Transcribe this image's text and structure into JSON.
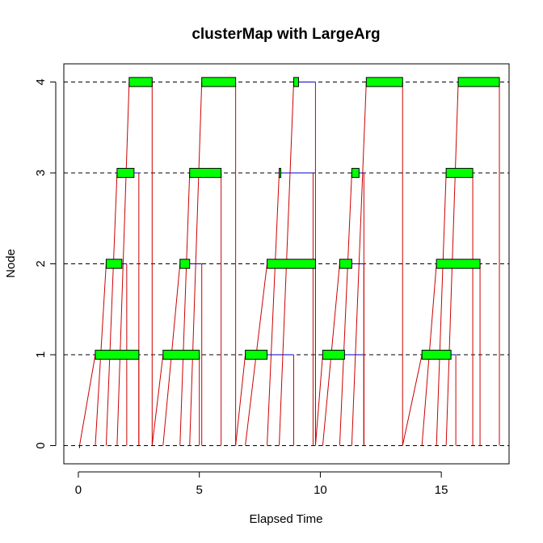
{
  "chart_data": {
    "type": "timeline",
    "title": "clusterMap with LargeArg",
    "xlabel": "Elapsed Time",
    "ylabel": "Node",
    "xlim": [
      -0.6,
      17.8
    ],
    "ylim": [
      -0.2,
      4.2
    ],
    "xticks": [
      0,
      5,
      10,
      15
    ],
    "yticks": [
      0,
      1,
      2,
      3,
      4
    ],
    "grid": "dashed horizontal lines at each node",
    "colors": {
      "compute": "#00ff00",
      "wait": "#0000cc",
      "comm": "#cc0000",
      "grid": "#000000"
    },
    "master": {
      "node": 0,
      "point": [
        0.05,
        -0.02
      ]
    },
    "rounds": [
      {
        "tasks": [
          {
            "node": 1,
            "compute": [
              0.7,
              2.5
            ],
            "wait_until": 2.5
          },
          {
            "node": 2,
            "compute": [
              1.15,
              1.8
            ],
            "wait_until": 2.0
          },
          {
            "node": 3,
            "compute": [
              1.6,
              2.3
            ],
            "wait_until": 2.5
          },
          {
            "node": 4,
            "compute": [
              2.1,
              3.05
            ],
            "wait_until": 3.05
          }
        ],
        "sends": [
          0.05,
          0.7,
          1.15,
          1.6
        ],
        "returns": [
          2.5,
          2.0,
          2.5,
          3.05
        ]
      },
      {
        "tasks": [
          {
            "node": 1,
            "compute": [
              3.5,
              5.0
            ],
            "wait_until": 5.0
          },
          {
            "node": 2,
            "compute": [
              4.2,
              4.6
            ],
            "wait_until": 5.1
          },
          {
            "node": 3,
            "compute": [
              4.6,
              5.9
            ],
            "wait_until": 5.9
          },
          {
            "node": 4,
            "compute": [
              5.1,
              6.5
            ],
            "wait_until": 6.5
          }
        ],
        "sends": [
          3.05,
          3.5,
          4.2,
          4.6
        ],
        "returns": [
          5.0,
          5.1,
          5.9,
          6.5
        ]
      },
      {
        "tasks": [
          {
            "node": 1,
            "compute": [
              6.9,
              7.8
            ],
            "wait_until": 8.9
          },
          {
            "node": 2,
            "compute": [
              7.8,
              9.8
            ],
            "wait_until": 9.8
          },
          {
            "node": 3,
            "compute": [
              8.3,
              8.35
            ],
            "wait_until": 9.7
          },
          {
            "node": 4,
            "compute": [
              8.9,
              9.1
            ],
            "wait_until": 9.8
          }
        ],
        "sends": [
          6.5,
          6.9,
          7.8,
          8.3
        ],
        "returns": [
          8.9,
          9.8,
          9.7,
          9.8
        ]
      },
      {
        "tasks": [
          {
            "node": 1,
            "compute": [
              10.1,
              11.0
            ],
            "wait_until": 11.8
          },
          {
            "node": 2,
            "compute": [
              10.8,
              11.3
            ],
            "wait_until": 11.8
          },
          {
            "node": 3,
            "compute": [
              11.3,
              11.6
            ],
            "wait_until": 11.8
          },
          {
            "node": 4,
            "compute": [
              11.9,
              13.4
            ],
            "wait_until": 13.4
          }
        ],
        "sends": [
          9.8,
          10.1,
          10.8,
          11.3
        ],
        "returns": [
          11.8,
          11.8,
          11.8,
          13.4
        ]
      },
      {
        "tasks": [
          {
            "node": 1,
            "compute": [
              14.2,
              15.4
            ],
            "wait_until": 15.6
          },
          {
            "node": 2,
            "compute": [
              14.8,
              16.6
            ],
            "wait_until": 16.6
          },
          {
            "node": 3,
            "compute": [
              15.2,
              16.3
            ],
            "wait_until": 16.3
          },
          {
            "node": 4,
            "compute": [
              15.7,
              17.4
            ],
            "wait_until": 17.4
          }
        ],
        "sends": [
          13.4,
          14.2,
          14.8,
          15.2
        ],
        "returns": [
          15.6,
          16.6,
          16.3,
          17.4
        ]
      }
    ]
  }
}
